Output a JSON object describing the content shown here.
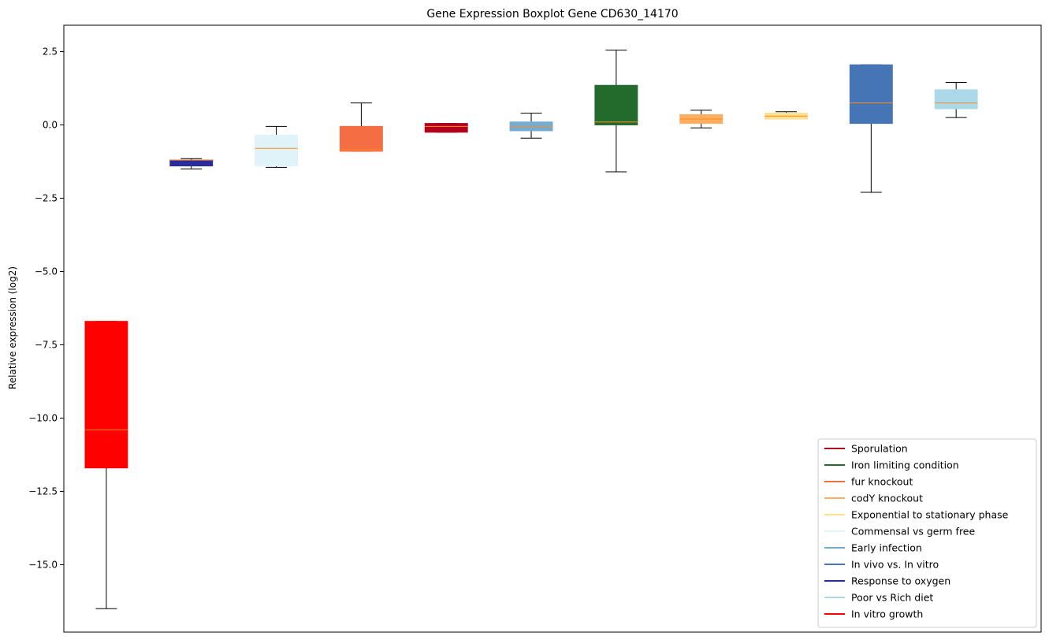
{
  "chart_data": {
    "type": "boxplot",
    "title": "Gene Expression Boxplot Gene CD630_14170",
    "xlabel": "",
    "ylabel": "Relative expression (log2)",
    "ylim": [
      -17.3,
      3.4
    ],
    "yticks": [
      2.5,
      0.0,
      -2.5,
      -5.0,
      -7.5,
      -10.0,
      -12.5,
      -15.0
    ],
    "ytick_labels": [
      "2.5",
      "0.0",
      "−2.5",
      "−5.0",
      "−7.5",
      "−10.0",
      "−12.5",
      "−15.0"
    ],
    "x_ticks_visible": false,
    "grid": false,
    "median_color": "#ff8c1a",
    "legend_position": "lower right",
    "boxes": [
      {
        "name": "In vitro growth",
        "color": "#ff0000",
        "whislo": -16.5,
        "q1": -11.7,
        "med": -10.4,
        "q3": -6.7,
        "whishi": -6.7
      },
      {
        "name": "Response to oxygen",
        "color": "#2b2b9c",
        "whislo": -1.5,
        "q1": -1.4,
        "med": -1.2,
        "q3": -1.2,
        "whishi": -1.15
      },
      {
        "name": "Commensal vs germ free",
        "color": "#e0f3f8",
        "whislo": -1.45,
        "q1": -1.4,
        "med": -0.8,
        "q3": -0.35,
        "whishi": -0.05
      },
      {
        "name": "fur knockout",
        "color": "#f46d43",
        "whislo": -0.9,
        "q1": -0.9,
        "med": -0.85,
        "q3": -0.05,
        "whishi": 0.75
      },
      {
        "name": "Sporulation",
        "color": "#b2001f",
        "whislo": -0.25,
        "q1": -0.25,
        "med": -0.05,
        "q3": 0.05,
        "whishi": 0.05
      },
      {
        "name": "Early infection",
        "color": "#74add1",
        "whislo": -0.45,
        "q1": -0.2,
        "med": -0.05,
        "q3": 0.1,
        "whishi": 0.4
      },
      {
        "name": "Iron limiting condition",
        "color": "#226b2c",
        "whislo": -1.6,
        "q1": 0.0,
        "med": 0.1,
        "q3": 1.35,
        "whishi": 2.55
      },
      {
        "name": "codY knockout",
        "color": "#fdae61",
        "whislo": -0.1,
        "q1": 0.05,
        "med": 0.2,
        "q3": 0.35,
        "whishi": 0.5
      },
      {
        "name": "Exponential to stationary phase",
        "color": "#fee090",
        "whislo": 0.2,
        "q1": 0.2,
        "med": 0.3,
        "q3": 0.4,
        "whishi": 0.45
      },
      {
        "name": "In vivo vs. In vitro",
        "color": "#4575b4",
        "whislo": -2.3,
        "q1": 0.05,
        "med": 0.75,
        "q3": 2.05,
        "whishi": 2.05
      },
      {
        "name": "Poor vs Rich diet",
        "color": "#abd9e9",
        "whislo": 0.25,
        "q1": 0.55,
        "med": 0.75,
        "q3": 1.2,
        "whishi": 1.45
      }
    ],
    "legend": [
      {
        "label": "Sporulation",
        "color": "#b2001f"
      },
      {
        "label": "Iron limiting condition",
        "color": "#226b2c"
      },
      {
        "label": "fur knockout",
        "color": "#f46d43"
      },
      {
        "label": "codY knockout",
        "color": "#fdae61"
      },
      {
        "label": "Exponential to stationary phase",
        "color": "#fee090"
      },
      {
        "label": "Commensal vs germ free",
        "color": "#e0f3f8"
      },
      {
        "label": "Early infection",
        "color": "#74add1"
      },
      {
        "label": "In vivo vs. In vitro",
        "color": "#4575b4"
      },
      {
        "label": "Response to oxygen",
        "color": "#2b2b9c"
      },
      {
        "label": "Poor vs Rich diet",
        "color": "#abd9e9"
      },
      {
        "label": "In vitro growth",
        "color": "#ff0000"
      }
    ]
  }
}
